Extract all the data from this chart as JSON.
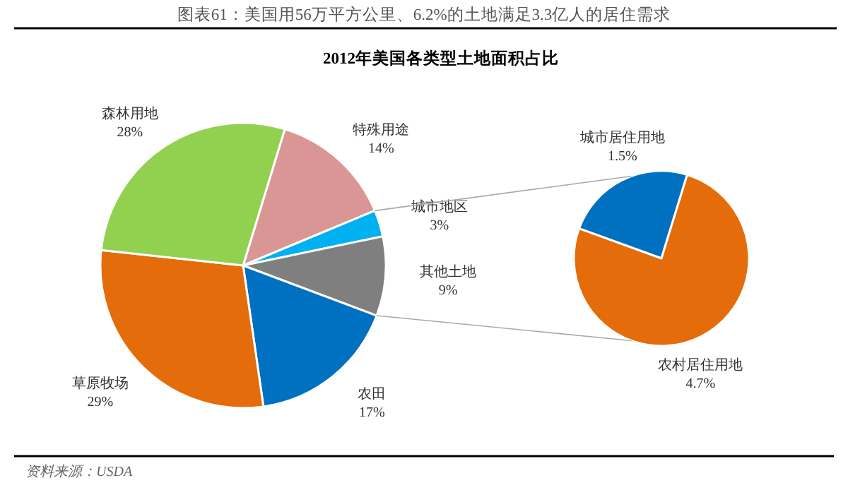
{
  "chart_data": [
    {
      "type": "pie",
      "title": "图表61：美国用56万平方公里、6.2%的土地满足3.3亿人的居住需求",
      "subtitle": "2012年美国各类型土地面积占比",
      "annotations": [
        "资料来源：USDA"
      ],
      "categories": [
        "特殊用途",
        "城市地区",
        "其他土地",
        "农田",
        "草原牧场",
        "森林用地"
      ],
      "values": [
        14,
        3,
        9,
        17,
        29,
        28
      ],
      "colors": [
        "#d99694",
        "#00b0f0",
        "#7f7f7f",
        "#0070c0",
        "#e46c0a",
        "#92d050"
      ],
      "value_labels": [
        "14%",
        "3%",
        "9%",
        "17%",
        "29%",
        "28%"
      ]
    },
    {
      "type": "pie",
      "categories": [
        "城市居住用地",
        "农村居住用地"
      ],
      "values": [
        1.5,
        4.7
      ],
      "colors": [
        "#0070c0",
        "#e46c0a"
      ],
      "value_labels": [
        "1.5%",
        "4.7%"
      ]
    }
  ]
}
